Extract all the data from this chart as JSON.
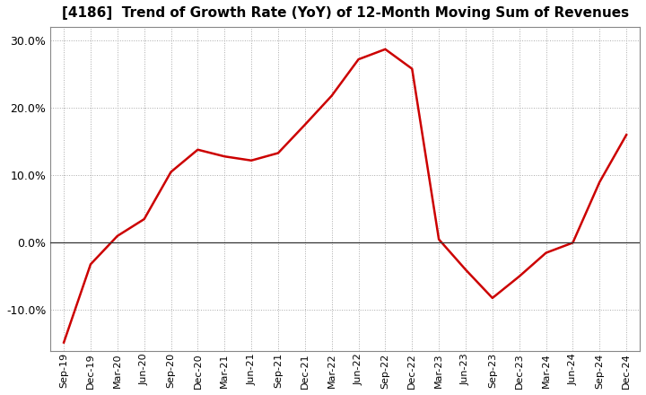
{
  "title": "[4186]  Trend of Growth Rate (YoY) of 12-Month Moving Sum of Revenues",
  "title_fontsize": 11,
  "line_color": "#cc0000",
  "line_width": 1.8,
  "background_color": "#ffffff",
  "grid_color": "#aaaaaa",
  "ylim": [
    -0.16,
    0.32
  ],
  "yticks": [
    -0.1,
    0.0,
    0.1,
    0.2,
    0.3
  ],
  "x_labels": [
    "Sep-19",
    "Dec-19",
    "Mar-20",
    "Jun-20",
    "Sep-20",
    "Dec-20",
    "Mar-21",
    "Jun-21",
    "Sep-21",
    "Dec-21",
    "Mar-22",
    "Jun-22",
    "Sep-22",
    "Dec-22",
    "Mar-23",
    "Jun-23",
    "Sep-23",
    "Dec-23",
    "Mar-24",
    "Jun-24",
    "Sep-24",
    "Dec-24"
  ],
  "x_values": [
    0,
    1,
    2,
    3,
    4,
    5,
    6,
    7,
    8,
    9,
    10,
    11,
    12,
    13,
    14,
    15,
    16,
    17,
    18,
    19,
    20,
    21
  ],
  "y_values": [
    -0.148,
    -0.032,
    0.01,
    0.035,
    0.105,
    0.138,
    0.128,
    0.122,
    0.133,
    0.175,
    0.218,
    0.272,
    0.287,
    0.258,
    0.005,
    -0.04,
    -0.082,
    -0.05,
    -0.015,
    0.0,
    0.09,
    0.16
  ]
}
